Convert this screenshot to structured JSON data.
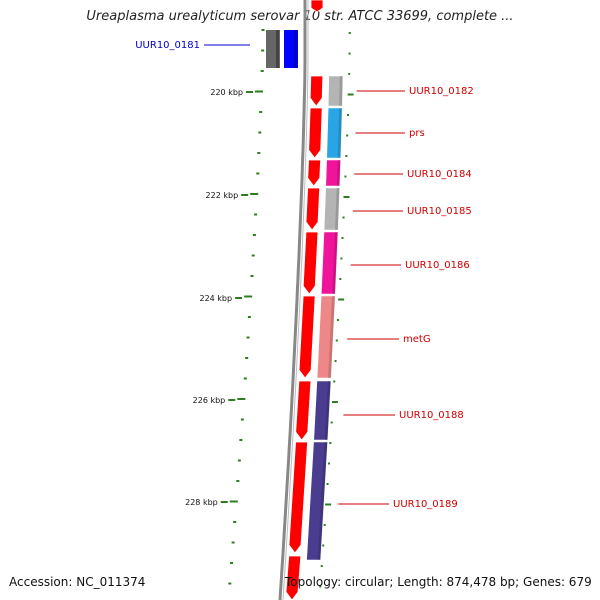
{
  "title": "Ureaplasma urealyticum serovar 10 str. ATCC 33699, complete ...",
  "accession_text": "Accession: NC_011374",
  "summary_text": "Topology: circular; Length: 874,478 bp; Genes: 679",
  "colors": {
    "tick": "#2e7d1e",
    "label_red": "#cc0000",
    "label_blue": "#0000cc",
    "cds_forward": "#ff0000",
    "backbone": "#888888"
  },
  "scale_labels": [
    "220 kbp",
    "222 kbp",
    "224 kbp",
    "226 kbp",
    "228 kbp"
  ],
  "genes": [
    {
      "name": "UUR10_0181",
      "label_color": "#0000cc",
      "fill": "#0000ff"
    },
    {
      "name": "UUR10_0182",
      "label_color": "#cc0000",
      "fill": "#b4b4b4"
    },
    {
      "name": "prs",
      "label_color": "#cc0000",
      "fill": "#29a5e6"
    },
    {
      "name": "UUR10_0184",
      "label_color": "#cc0000",
      "fill": "#f0149b"
    },
    {
      "name": "UUR10_0185",
      "label_color": "#cc0000",
      "fill": "#b4b4b4"
    },
    {
      "name": "UUR10_0186",
      "label_color": "#cc0000",
      "fill": "#f0149b"
    },
    {
      "name": "metG",
      "label_color": "#cc0000",
      "fill": "#ee8888"
    },
    {
      "name": "UUR10_0188",
      "label_color": "#cc0000",
      "fill": "#4a3d8f"
    },
    {
      "name": "UUR10_0189",
      "label_color": "#cc0000",
      "fill": "#4a3d8f"
    }
  ]
}
